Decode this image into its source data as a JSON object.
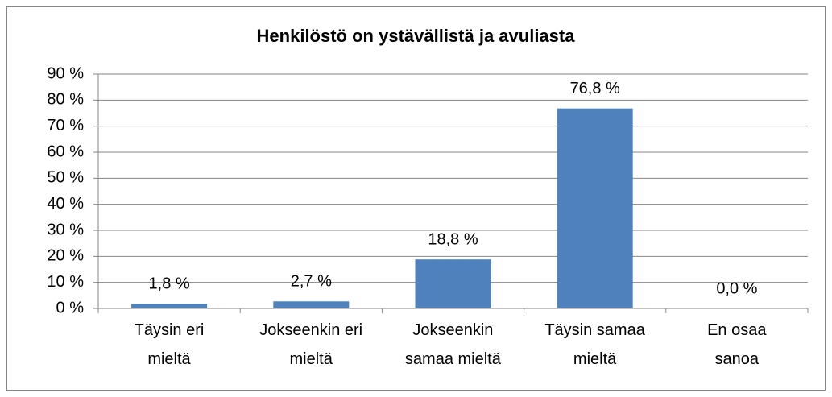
{
  "chart_data": {
    "type": "bar",
    "title": "Henkilöstö on ystävällistä ja avuliasta",
    "categories": [
      "Täysin eri\nmieltä",
      "Jokseenkin eri\nmieltä",
      "Jokseenkin\nsamaa mieltä",
      "Täysin samaa\nmieltä",
      "En osaa\nsanoa"
    ],
    "values": [
      1.8,
      2.7,
      18.8,
      76.8,
      0.0
    ],
    "value_labels": [
      "1,8 %",
      "2,7 %",
      "18,8 %",
      "76,8 %",
      "0,0 %"
    ],
    "color": "#4f81bd",
    "ylim": [
      0,
      90
    ],
    "yticks": [
      {
        "value": 0,
        "label": "0 %"
      },
      {
        "value": 10,
        "label": "10 %"
      },
      {
        "value": 20,
        "label": "20 %"
      },
      {
        "value": 30,
        "label": "30 %"
      },
      {
        "value": 40,
        "label": "40 %"
      },
      {
        "value": 50,
        "label": "50 %"
      },
      {
        "value": 60,
        "label": "60 %"
      },
      {
        "value": 70,
        "label": "70 %"
      },
      {
        "value": 80,
        "label": "80 %"
      },
      {
        "value": 90,
        "label": "90 %"
      }
    ],
    "grid": true
  }
}
